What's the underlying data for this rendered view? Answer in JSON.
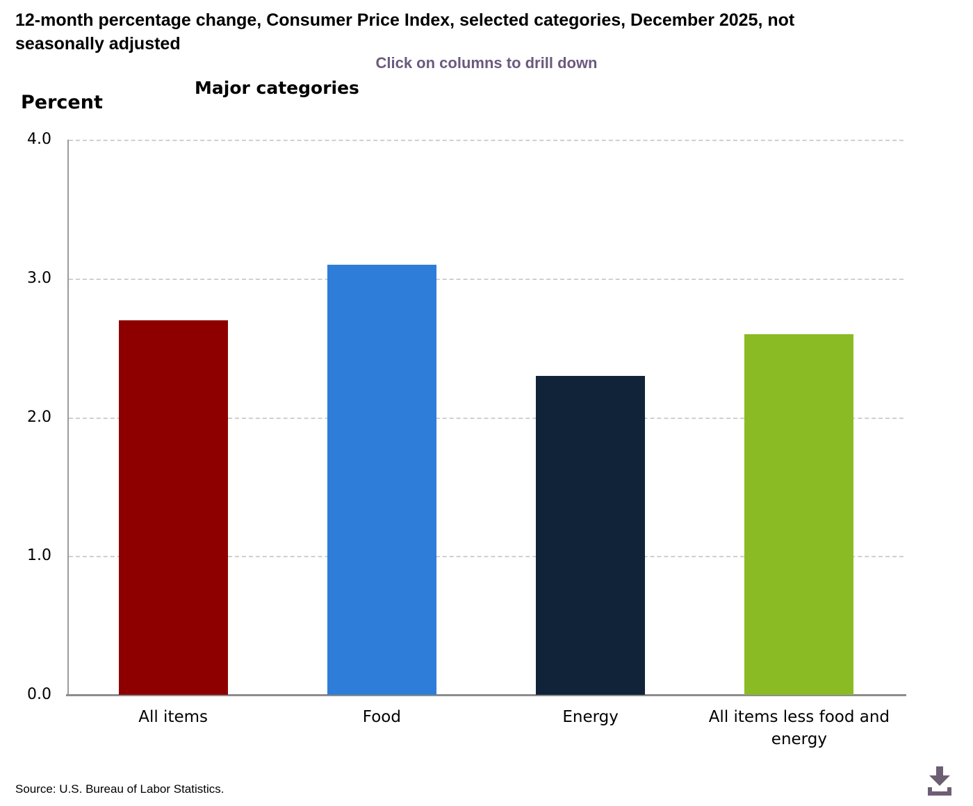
{
  "header": {
    "title_line1": "12-month percentage change, Consumer Price Index, selected categories, December 2025, not",
    "title_line2": "seasonally adjusted",
    "subtitle": "Click on columns to drill down",
    "chart_heading": "Major categories",
    "y_axis_title": "Percent"
  },
  "footer": {
    "source": "Source: U.S. Bureau of Labor Statistics.",
    "download_icon": "download-arrow-into-tray"
  },
  "colors": {
    "subtitle_text": "#6b5a7d",
    "download_icon": "#6e5e73",
    "gridline": "#d0d0d0",
    "y_axis": "#9a9a9a",
    "x_axis": "#8c8c8c"
  },
  "chart_data": {
    "type": "bar",
    "title": "Major categories",
    "xlabel": "",
    "ylabel": "Percent",
    "categories": [
      "All items",
      "Food",
      "Energy",
      "All items less food and energy"
    ],
    "values": [
      2.7,
      3.1,
      2.3,
      2.6
    ],
    "bar_colors": [
      "#8e0000",
      "#2e7dd9",
      "#112338",
      "#8abb25"
    ],
    "ylim": [
      0,
      4
    ],
    "yticks": [
      0,
      1,
      2,
      3,
      4
    ],
    "ytick_labels": [
      "0.0",
      "1.0",
      "2.0",
      "3.0",
      "4.0"
    ],
    "grid": "horizontal-dashed",
    "legend": "none",
    "interaction_hint": "Click on columns to drill down"
  }
}
